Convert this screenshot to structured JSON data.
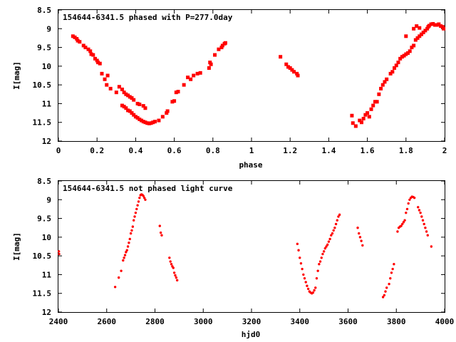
{
  "chart_data": [
    {
      "type": "scatter",
      "title": "154644-6341.5 phased with P=277.0day",
      "xlabel": "phase",
      "ylabel": "I[mag]",
      "xlim": [
        0,
        2
      ],
      "ylim": [
        8.5,
        12
      ],
      "y_inverted": true,
      "grid": false,
      "marker_color": "#ff0000",
      "marker": "filled-square",
      "xticks": [
        "0",
        "0.2",
        "0.4",
        "0.6",
        "0.8",
        "1",
        "1.2",
        "1.4",
        "1.6",
        "1.8",
        "2"
      ],
      "yticks": [
        "8.5",
        "9",
        "9.5",
        "10",
        "10.5",
        "11",
        "11.5",
        "12"
      ],
      "series": [
        {
          "points": [
            [
              0.075,
              9.2
            ],
            [
              0.085,
              9.23
            ],
            [
              0.095,
              9.27
            ],
            [
              0.1,
              9.32
            ],
            [
              0.11,
              9.35
            ],
            [
              0.13,
              9.45
            ],
            [
              0.14,
              9.5
            ],
            [
              0.155,
              9.55
            ],
            [
              0.165,
              9.6
            ],
            [
              0.17,
              9.68
            ],
            [
              0.18,
              9.7
            ],
            [
              0.19,
              9.8
            ],
            [
              0.2,
              9.85
            ],
            [
              0.205,
              9.9
            ],
            [
              0.215,
              9.93
            ],
            [
              0.225,
              10.2
            ],
            [
              0.24,
              10.35
            ],
            [
              0.25,
              10.5
            ],
            [
              0.255,
              10.25
            ],
            [
              0.27,
              10.6
            ],
            [
              0.3,
              10.7
            ],
            [
              0.315,
              10.55
            ],
            [
              0.33,
              10.62
            ],
            [
              0.34,
              10.7
            ],
            [
              0.35,
              10.75
            ],
            [
              0.36,
              10.78
            ],
            [
              0.37,
              10.82
            ],
            [
              0.38,
              10.85
            ],
            [
              0.39,
              10.9
            ],
            [
              0.33,
              11.05
            ],
            [
              0.34,
              11.08
            ],
            [
              0.35,
              11.12
            ],
            [
              0.36,
              11.18
            ],
            [
              0.37,
              11.2
            ],
            [
              0.38,
              11.25
            ],
            [
              0.39,
              11.3
            ],
            [
              0.4,
              11.35
            ],
            [
              0.41,
              11.38
            ],
            [
              0.42,
              11.42
            ],
            [
              0.43,
              11.45
            ],
            [
              0.44,
              11.48
            ],
            [
              0.45,
              11.5
            ],
            [
              0.46,
              11.52
            ],
            [
              0.47,
              11.53
            ],
            [
              0.48,
              11.52
            ],
            [
              0.49,
              11.5
            ],
            [
              0.5,
              11.48
            ],
            [
              0.41,
              11.0
            ],
            [
              0.42,
              11.02
            ],
            [
              0.44,
              11.06
            ],
            [
              0.45,
              11.12
            ],
            [
              0.52,
              11.45
            ],
            [
              0.54,
              11.35
            ],
            [
              0.56,
              11.25
            ],
            [
              0.565,
              11.2
            ],
            [
              0.59,
              10.95
            ],
            [
              0.6,
              10.93
            ],
            [
              0.61,
              10.7
            ],
            [
              0.62,
              10.68
            ],
            [
              0.65,
              10.5
            ],
            [
              0.67,
              10.3
            ],
            [
              0.685,
              10.35
            ],
            [
              0.7,
              10.25
            ],
            [
              0.72,
              10.2
            ],
            [
              0.735,
              10.18
            ],
            [
              0.78,
              10.05
            ],
            [
              0.785,
              9.9
            ],
            [
              0.79,
              9.95
            ],
            [
              0.81,
              9.7
            ],
            [
              0.83,
              9.55
            ],
            [
              0.845,
              9.5
            ],
            [
              0.85,
              9.45
            ],
            [
              0.86,
              9.4
            ],
            [
              0.865,
              9.38
            ],
            [
              1.15,
              9.75
            ],
            [
              1.18,
              9.95
            ],
            [
              1.19,
              10.02
            ],
            [
              1.2,
              10.05
            ],
            [
              1.21,
              10.1
            ],
            [
              1.22,
              10.15
            ],
            [
              1.235,
              10.2
            ],
            [
              1.24,
              10.25
            ],
            [
              1.52,
              11.32
            ],
            [
              1.525,
              11.52
            ],
            [
              1.54,
              11.6
            ],
            [
              1.56,
              11.45
            ],
            [
              1.57,
              11.5
            ],
            [
              1.58,
              11.4
            ],
            [
              1.59,
              11.3
            ],
            [
              1.6,
              11.25
            ],
            [
              1.61,
              11.35
            ],
            [
              1.62,
              11.15
            ],
            [
              1.63,
              11.05
            ],
            [
              1.64,
              10.95
            ],
            [
              1.65,
              10.95
            ],
            [
              1.66,
              10.75
            ],
            [
              1.67,
              10.6
            ],
            [
              1.68,
              10.5
            ],
            [
              1.69,
              10.42
            ],
            [
              1.7,
              10.35
            ],
            [
              1.72,
              10.2
            ],
            [
              1.73,
              10.15
            ],
            [
              1.74,
              10.05
            ],
            [
              1.75,
              9.98
            ],
            [
              1.76,
              9.9
            ],
            [
              1.77,
              9.8
            ],
            [
              1.78,
              9.75
            ],
            [
              1.79,
              9.72
            ],
            [
              1.8,
              9.68
            ],
            [
              1.81,
              9.65
            ],
            [
              1.82,
              9.6
            ],
            [
              1.83,
              9.5
            ],
            [
              1.84,
              9.45
            ],
            [
              1.85,
              9.3
            ],
            [
              1.86,
              9.25
            ],
            [
              1.87,
              9.2
            ],
            [
              1.88,
              9.15
            ],
            [
              1.89,
              9.1
            ],
            [
              1.9,
              9.05
            ],
            [
              1.91,
              9.0
            ],
            [
              1.915,
              8.95
            ],
            [
              1.92,
              8.92
            ],
            [
              1.93,
              8.88
            ],
            [
              1.94,
              8.87
            ],
            [
              1.95,
              8.9
            ],
            [
              1.96,
              8.9
            ],
            [
              1.97,
              8.88
            ],
            [
              1.98,
              8.93
            ],
            [
              1.99,
              8.95
            ],
            [
              1.995,
              9.0
            ],
            [
              1.8,
              9.2
            ],
            [
              1.84,
              9.0
            ],
            [
              1.855,
              8.93
            ],
            [
              1.87,
              8.98
            ]
          ]
        }
      ]
    },
    {
      "type": "scatter",
      "title": "154644-6341.5 not phased light curve",
      "xlabel": "hjd0",
      "ylabel": "I[mag]",
      "xlim": [
        2400,
        4000
      ],
      "ylim": [
        8.5,
        12
      ],
      "y_inverted": true,
      "grid": false,
      "marker_color": "#ff0000",
      "marker": "small-dot",
      "xticks": [
        "2400",
        "2600",
        "2800",
        "3000",
        "3200",
        "3400",
        "3600",
        "3800",
        "4000"
      ],
      "yticks": [
        "8.5",
        "9",
        "9.5",
        "10",
        "10.5",
        "11",
        "11.5",
        "12"
      ],
      "series": [
        {
          "points": [
            [
              2402,
              10.38
            ],
            [
              2403,
              10.45
            ],
            [
              2635,
              11.33
            ],
            [
              2650,
              11.08
            ],
            [
              2660,
              10.9
            ],
            [
              2668,
              10.62
            ],
            [
              2672,
              10.55
            ],
            [
              2676,
              10.48
            ],
            [
              2680,
              10.4
            ],
            [
              2684,
              10.35
            ],
            [
              2688,
              10.25
            ],
            [
              2692,
              10.15
            ],
            [
              2696,
              10.05
            ],
            [
              2700,
              9.9
            ],
            [
              2704,
              9.82
            ],
            [
              2708,
              9.72
            ],
            [
              2712,
              9.55
            ],
            [
              2716,
              9.45
            ],
            [
              2720,
              9.35
            ],
            [
              2724,
              9.25
            ],
            [
              2728,
              9.15
            ],
            [
              2732,
              9.05
            ],
            [
              2736,
              8.95
            ],
            [
              2740,
              8.88
            ],
            [
              2744,
              8.86
            ],
            [
              2748,
              8.87
            ],
            [
              2752,
              8.9
            ],
            [
              2756,
              8.95
            ],
            [
              2760,
              9.0
            ],
            [
              2820,
              9.7
            ],
            [
              2824,
              9.88
            ],
            [
              2828,
              9.95
            ],
            [
              2860,
              10.55
            ],
            [
              2864,
              10.65
            ],
            [
              2868,
              10.72
            ],
            [
              2872,
              10.78
            ],
            [
              2876,
              10.82
            ],
            [
              2880,
              10.95
            ],
            [
              2884,
              11.02
            ],
            [
              2888,
              11.08
            ],
            [
              2892,
              11.15
            ],
            [
              3390,
              10.18
            ],
            [
              3395,
              10.35
            ],
            [
              3400,
              10.55
            ],
            [
              3405,
              10.7
            ],
            [
              3410,
              10.85
            ],
            [
              3415,
              11.0
            ],
            [
              3420,
              11.1
            ],
            [
              3425,
              11.2
            ],
            [
              3430,
              11.3
            ],
            [
              3435,
              11.38
            ],
            [
              3440,
              11.45
            ],
            [
              3445,
              11.48
            ],
            [
              3450,
              11.5
            ],
            [
              3455,
              11.48
            ],
            [
              3460,
              11.42
            ],
            [
              3465,
              11.35
            ],
            [
              3470,
              11.1
            ],
            [
              3475,
              10.9
            ],
            [
              3480,
              10.72
            ],
            [
              3485,
              10.65
            ],
            [
              3490,
              10.55
            ],
            [
              3495,
              10.45
            ],
            [
              3500,
              10.38
            ],
            [
              3505,
              10.3
            ],
            [
              3510,
              10.25
            ],
            [
              3515,
              10.2
            ],
            [
              3520,
              10.12
            ],
            [
              3525,
              10.05
            ],
            [
              3530,
              9.95
            ],
            [
              3535,
              9.9
            ],
            [
              3540,
              9.82
            ],
            [
              3545,
              9.75
            ],
            [
              3550,
              9.65
            ],
            [
              3555,
              9.55
            ],
            [
              3560,
              9.45
            ],
            [
              3565,
              9.4
            ],
            [
              3640,
              9.75
            ],
            [
              3645,
              9.9
            ],
            [
              3650,
              10.0
            ],
            [
              3655,
              10.1
            ],
            [
              3660,
              10.22
            ],
            [
              3745,
              11.6
            ],
            [
              3750,
              11.55
            ],
            [
              3755,
              11.45
            ],
            [
              3760,
              11.35
            ],
            [
              3770,
              11.25
            ],
            [
              3775,
              11.1
            ],
            [
              3780,
              10.95
            ],
            [
              3785,
              10.85
            ],
            [
              3790,
              10.72
            ],
            [
              3805,
              9.85
            ],
            [
              3810,
              9.75
            ],
            [
              3815,
              9.72
            ],
            [
              3820,
              9.7
            ],
            [
              3825,
              9.65
            ],
            [
              3830,
              9.6
            ],
            [
              3835,
              9.55
            ],
            [
              3840,
              9.35
            ],
            [
              3845,
              9.25
            ],
            [
              3850,
              9.1
            ],
            [
              3855,
              9.0
            ],
            [
              3860,
              8.95
            ],
            [
              3865,
              8.92
            ],
            [
              3870,
              8.93
            ],
            [
              3875,
              8.95
            ],
            [
              3890,
              9.2
            ],
            [
              3895,
              9.28
            ],
            [
              3900,
              9.35
            ],
            [
              3905,
              9.45
            ],
            [
              3910,
              9.55
            ],
            [
              3915,
              9.65
            ],
            [
              3920,
              9.75
            ],
            [
              3925,
              9.85
            ],
            [
              3930,
              9.95
            ],
            [
              3945,
              10.25
            ]
          ]
        }
      ]
    }
  ]
}
